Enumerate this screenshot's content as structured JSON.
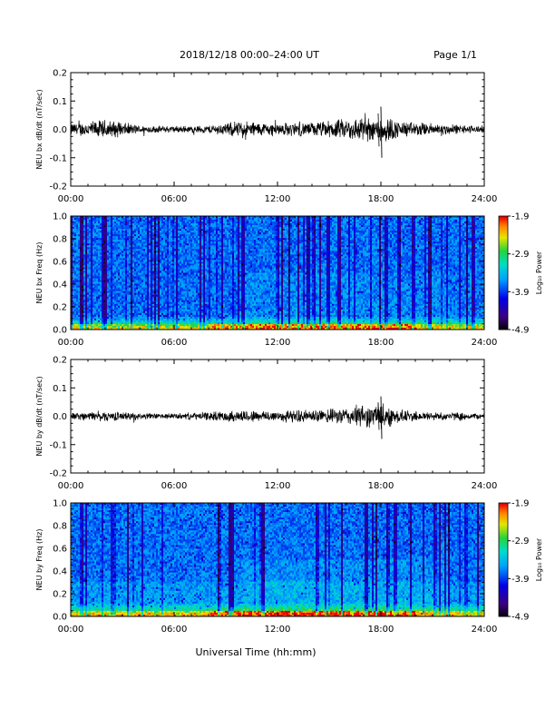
{
  "header": {
    "title": "2018/12/18  00:00–24:00 UT",
    "page": "Page 1/1"
  },
  "xlabel": "Universal Time (hh:mm)",
  "x_ticks": [
    "00:00",
    "06:00",
    "12:00",
    "18:00",
    "24:00"
  ],
  "colorbar": {
    "label": "Log₁₀ Power",
    "ticks": [
      "-1.9",
      "-2.9",
      "-3.9",
      "-4.9"
    ],
    "range": [
      -4.9,
      -1.9
    ]
  },
  "chart_data": [
    {
      "type": "line",
      "ylabel": "NEU bx dB/dt (nT/sec)",
      "xlim": [
        0,
        24
      ],
      "ylim": [
        -0.2,
        0.2
      ],
      "y_ticks": [
        "0.2",
        "0.1",
        "0.0",
        "-0.1",
        "-0.2"
      ],
      "series": [
        {
          "x_hours": [
            0,
            1,
            2,
            3,
            4,
            5,
            6,
            7,
            8,
            9,
            10,
            11,
            12,
            13,
            14,
            15,
            16,
            17,
            17.5,
            18,
            18.5,
            19,
            20,
            21,
            22,
            23,
            24
          ],
          "amplitude": [
            0.018,
            0.022,
            0.028,
            0.02,
            0.012,
            0.01,
            0.01,
            0.01,
            0.012,
            0.018,
            0.025,
            0.02,
            0.018,
            0.02,
            0.02,
            0.025,
            0.03,
            0.038,
            0.03,
            0.045,
            0.035,
            0.025,
            0.02,
            0.018,
            0.015,
            0.012,
            0.01
          ],
          "peak_max": 0.08,
          "peak_min": -0.1,
          "peak_time": 18.0
        }
      ]
    },
    {
      "type": "heatmap",
      "ylabel": "NEU bx Freq (Hz)",
      "xlim": [
        0,
        24
      ],
      "ylim": [
        0.0,
        1.0
      ],
      "y_ticks": [
        "1.0",
        "0.8",
        "0.6",
        "0.4",
        "0.2",
        "0.0"
      ],
      "zlim": [
        -4.9,
        -1.9
      ]
    },
    {
      "type": "line",
      "ylabel": "NEU by dB/dt (nT/sec)",
      "xlim": [
        0,
        24
      ],
      "ylim": [
        -0.2,
        0.2
      ],
      "y_ticks": [
        "0.2",
        "0.1",
        "0.0",
        "-0.1",
        "-0.2"
      ],
      "series": [
        {
          "x_hours": [
            0,
            1,
            2,
            3,
            4,
            5,
            6,
            7,
            8,
            9,
            10,
            11,
            12,
            13,
            14,
            15,
            16,
            17,
            17.5,
            18,
            18.5,
            19,
            20,
            21,
            22,
            23,
            24
          ],
          "amplitude": [
            0.01,
            0.012,
            0.014,
            0.012,
            0.01,
            0.008,
            0.008,
            0.01,
            0.012,
            0.015,
            0.018,
            0.016,
            0.016,
            0.018,
            0.018,
            0.02,
            0.025,
            0.035,
            0.03,
            0.04,
            0.03,
            0.02,
            0.015,
            0.012,
            0.012,
            0.01,
            0.008
          ],
          "peak_max": 0.07,
          "peak_min": -0.08,
          "peak_time": 18.0
        }
      ]
    },
    {
      "type": "heatmap",
      "ylabel": "NEU by Freq (Hz)",
      "xlim": [
        0,
        24
      ],
      "ylim": [
        0.0,
        1.0
      ],
      "y_ticks": [
        "1.0",
        "0.8",
        "0.6",
        "0.4",
        "0.2",
        "0.0"
      ],
      "zlim": [
        -4.9,
        -1.9
      ]
    }
  ]
}
